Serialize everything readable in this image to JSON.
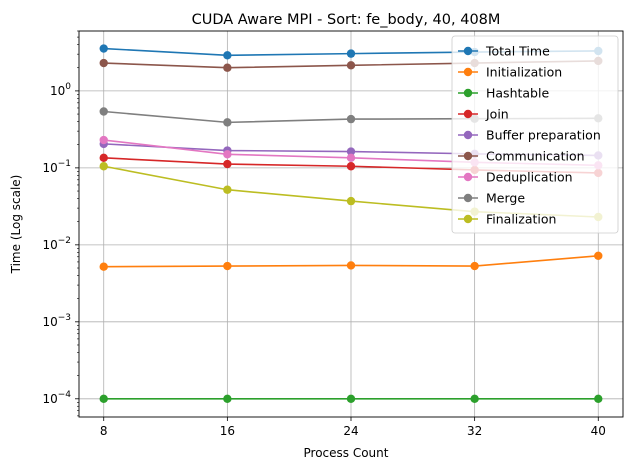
{
  "chart_data": {
    "type": "line",
    "title": "CUDA Aware MPI - Sort: fe_body, 40, 408M",
    "xlabel": "Process Count",
    "ylabel": "Time (Log scale)",
    "yscale": "log",
    "x": [
      8,
      16,
      24,
      32,
      40
    ],
    "xlim": [
      6.4,
      41.6
    ],
    "ylim": [
      5.8e-05,
      6.0
    ],
    "x_ticks": [
      {
        "value": 8,
        "label": "8"
      },
      {
        "value": 16,
        "label": "16"
      },
      {
        "value": 24,
        "label": "24"
      },
      {
        "value": 32,
        "label": "32"
      },
      {
        "value": 40,
        "label": "40"
      }
    ],
    "y_ticks": [
      {
        "value": 0.0001,
        "base": "10",
        "exp": "−4"
      },
      {
        "value": 0.001,
        "base": "10",
        "exp": "−3"
      },
      {
        "value": 0.01,
        "base": "10",
        "exp": "−2"
      },
      {
        "value": 0.1,
        "base": "10",
        "exp": "−1"
      },
      {
        "value": 1,
        "base": "10",
        "exp": "0"
      }
    ],
    "grid": true,
    "legend_position": "top-right",
    "series": [
      {
        "name": "Total Time",
        "color": "#1f77b4",
        "values": [
          3.55,
          2.9,
          3.05,
          3.2,
          3.3
        ]
      },
      {
        "name": "Initialization",
        "color": "#ff7f0e",
        "values": [
          0.0052,
          0.0053,
          0.0054,
          0.0053,
          0.0072
        ]
      },
      {
        "name": "Hashtable",
        "color": "#2ca02c",
        "values": [
          0.0001,
          0.0001,
          0.0001,
          0.0001,
          0.0001
        ]
      },
      {
        "name": "Join",
        "color": "#d62728",
        "values": [
          0.135,
          0.112,
          0.105,
          0.094,
          0.086
        ]
      },
      {
        "name": "Buffer preparation",
        "color": "#9467bd",
        "values": [
          0.205,
          0.168,
          0.163,
          0.152,
          0.145
        ]
      },
      {
        "name": "Communication",
        "color": "#8c564b",
        "values": [
          2.3,
          2.0,
          2.15,
          2.3,
          2.45
        ]
      },
      {
        "name": "Deduplication",
        "color": "#e377c2",
        "values": [
          0.23,
          0.15,
          0.135,
          0.118,
          0.108
        ]
      },
      {
        "name": "Merge",
        "color": "#7f7f7f",
        "values": [
          0.54,
          0.39,
          0.43,
          0.435,
          0.44
        ]
      },
      {
        "name": "Finalization",
        "color": "#bcbd22",
        "values": [
          0.105,
          0.052,
          0.037,
          0.027,
          0.023
        ]
      }
    ]
  }
}
